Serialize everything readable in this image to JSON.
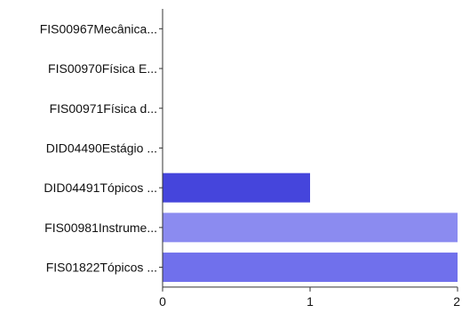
{
  "chart_data": {
    "type": "bar",
    "orientation": "horizontal",
    "title": "",
    "xlabel": "",
    "ylabel": "",
    "xlim": [
      0,
      2
    ],
    "grid": false,
    "legend": "none",
    "x_ticks": [
      0,
      1,
      2
    ],
    "categories": [
      "FIS00967Mecânica...",
      "FIS00970Física E...",
      "FIS00971Física d...",
      "DID04490Estágio ...",
      "DID04491Tópicos ...",
      "FIS00981Instrume...",
      "FIS01822Tópicos ..."
    ],
    "values": [
      0,
      0,
      0,
      0,
      1,
      2,
      2
    ],
    "colors": [
      "#4f4fe0",
      "#4f4fe0",
      "#4f4fe0",
      "#4f4fe0",
      "#4545dc",
      "#8b8bf0",
      "#7070ec"
    ]
  }
}
